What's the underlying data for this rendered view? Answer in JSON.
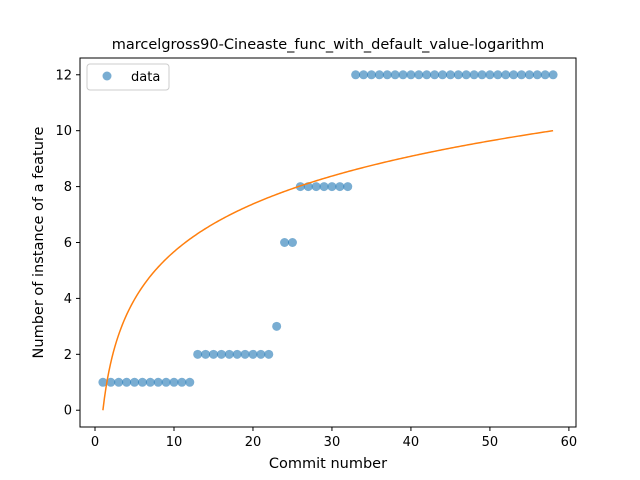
{
  "chart_data": {
    "type": "scatter",
    "title": "marcelgross90-Cineaste_func_with_default_value-logarithm",
    "xlabel": "Commit number",
    "ylabel": "Number of instance of a feature",
    "xlim": [
      -1.9,
      60.9
    ],
    "ylim": [
      -0.6,
      12.6
    ],
    "xticks": [
      0,
      10,
      20,
      30,
      40,
      50,
      60
    ],
    "yticks": [
      0,
      2,
      4,
      6,
      8,
      10,
      12
    ],
    "grid": false,
    "legend": {
      "position": "upper left",
      "entries": [
        "data"
      ]
    },
    "series": [
      {
        "name": "data",
        "kind": "scatter",
        "color": "#1f77b4",
        "alpha": 0.6,
        "x": [
          1,
          2,
          3,
          4,
          5,
          6,
          7,
          8,
          9,
          10,
          11,
          12,
          13,
          14,
          15,
          16,
          17,
          18,
          19,
          20,
          21,
          22,
          23,
          24,
          25,
          26,
          27,
          28,
          29,
          30,
          31,
          32,
          33,
          34,
          35,
          36,
          37,
          38,
          39,
          40,
          41,
          42,
          43,
          44,
          45,
          46,
          47,
          48,
          49,
          50,
          51,
          52,
          53,
          54,
          55,
          56,
          57,
          58
        ],
        "y": [
          1,
          1,
          1,
          1,
          1,
          1,
          1,
          1,
          1,
          1,
          1,
          1,
          2,
          2,
          2,
          2,
          2,
          2,
          2,
          2,
          2,
          2,
          3,
          6,
          6,
          8,
          8,
          8,
          8,
          8,
          8,
          8,
          12,
          12,
          12,
          12,
          12,
          12,
          12,
          12,
          12,
          12,
          12,
          12,
          12,
          12,
          12,
          12,
          12,
          12,
          12,
          12,
          12,
          12,
          12,
          12,
          12,
          12
        ]
      },
      {
        "kind": "line",
        "color": "#ff7f0e",
        "fit": "logarithmic",
        "y_at_x_min": 0,
        "y_at_x_max": 10,
        "x_range": [
          1,
          58
        ]
      }
    ]
  }
}
